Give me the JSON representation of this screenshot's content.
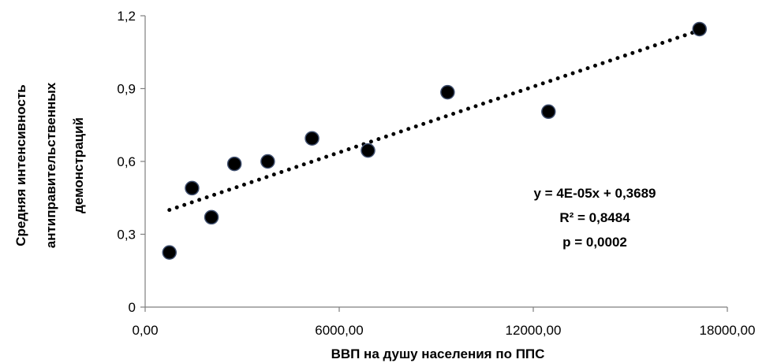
{
  "chart_data": {
    "type": "scatter",
    "xlabel": "ВВП на душу населения по ППС",
    "ylabel_lines": [
      "Средняя интенсивность",
      "антиправительственных",
      "демонстраций"
    ],
    "xlim": [
      0,
      18000
    ],
    "ylim": [
      0,
      1.2
    ],
    "x_ticks": [
      0,
      6000,
      12000,
      18000
    ],
    "x_tick_labels": [
      "0,00",
      "6000,00",
      "12000,00",
      "18000,00"
    ],
    "y_ticks": [
      0,
      0.3,
      0.6,
      0.9,
      1.2
    ],
    "y_tick_labels": [
      "0",
      "0,3",
      "0,6",
      "0,9",
      "1,2"
    ],
    "grid": false,
    "points": [
      {
        "x": 750,
        "y": 0.225
      },
      {
        "x": 1450,
        "y": 0.49
      },
      {
        "x": 2050,
        "y": 0.37
      },
      {
        "x": 2760,
        "y": 0.59
      },
      {
        "x": 3790,
        "y": 0.6
      },
      {
        "x": 5160,
        "y": 0.695
      },
      {
        "x": 6890,
        "y": 0.645
      },
      {
        "x": 9350,
        "y": 0.885
      },
      {
        "x": 12470,
        "y": 0.805
      },
      {
        "x": 17140,
        "y": 1.145
      }
    ],
    "trendline": {
      "type": "linear",
      "x_range": [
        750,
        17140
      ],
      "y_start": 0.4,
      "y_end": 1.14,
      "style": "dotted"
    },
    "annotations": [
      "y = 4E-05x + 0,3689",
      "R² = 0,8484",
      "p = 0,0002"
    ],
    "colors": {
      "marker_fill": "#000000",
      "marker_stroke": "#3f4f6f",
      "trendline": "#000000",
      "axis": "#7f7f7f"
    }
  }
}
